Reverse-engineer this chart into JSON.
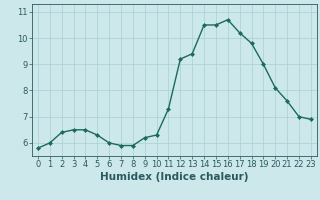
{
  "x": [
    0,
    1,
    2,
    3,
    4,
    5,
    6,
    7,
    8,
    9,
    10,
    11,
    12,
    13,
    14,
    15,
    16,
    17,
    18,
    19,
    20,
    21,
    22,
    23
  ],
  "y": [
    5.8,
    6.0,
    6.4,
    6.5,
    6.5,
    6.3,
    6.0,
    5.9,
    5.9,
    6.2,
    6.3,
    7.3,
    9.2,
    9.4,
    10.5,
    10.5,
    10.7,
    10.2,
    9.8,
    9.0,
    8.1,
    7.6,
    7.0,
    6.9
  ],
  "line_color": "#1a6b5a",
  "marker": "D",
  "marker_size": 2.0,
  "line_width": 1.0,
  "xlabel": "Humidex (Indice chaleur)",
  "xlim": [
    -0.5,
    23.5
  ],
  "ylim": [
    5.5,
    11.3
  ],
  "yticks": [
    6,
    7,
    8,
    9,
    10,
    11
  ],
  "xtick_labels": [
    "0",
    "1",
    "2",
    "3",
    "4",
    "5",
    "6",
    "7",
    "8",
    "9",
    "10",
    "11",
    "12",
    "13",
    "14",
    "15",
    "16",
    "17",
    "18",
    "19",
    "20",
    "21",
    "22",
    "23"
  ],
  "bg_color": "#cde8eb",
  "grid_color": "#aacfd4",
  "font_color": "#2a5a60",
  "xlabel_fontsize": 7.5,
  "tick_fontsize": 6.0
}
